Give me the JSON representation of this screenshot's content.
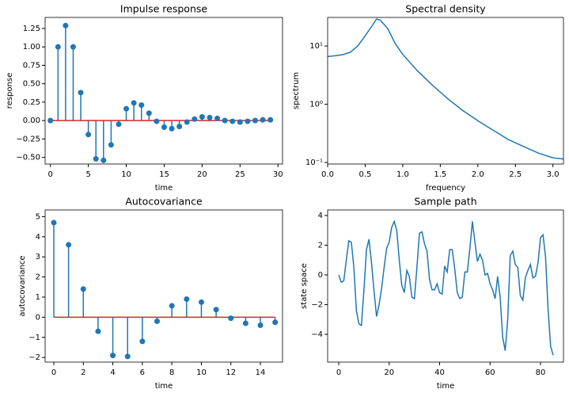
{
  "chart_data": [
    {
      "type": "stem",
      "title": "Impulse response",
      "xlabel": "time",
      "ylabel": "response",
      "x": [
        0,
        1,
        2,
        3,
        4,
        5,
        6,
        7,
        8,
        9,
        10,
        11,
        12,
        13,
        14,
        15,
        16,
        17,
        18,
        19,
        20,
        21,
        22,
        23,
        24,
        25,
        26,
        27,
        28,
        29
      ],
      "values": [
        0,
        1.0,
        1.29,
        1.0,
        0.38,
        -0.19,
        -0.52,
        -0.54,
        -0.33,
        -0.05,
        0.16,
        0.24,
        0.21,
        0.1,
        -0.01,
        -0.09,
        -0.11,
        -0.08,
        -0.02,
        0.02,
        0.05,
        0.04,
        0.03,
        0.0,
        -0.01,
        -0.02,
        -0.01,
        0.0,
        0.01,
        0.01
      ],
      "color": "#1f77b4",
      "baseline_color": "#d62728",
      "xlim": [
        -0.7,
        30.6
      ],
      "xticks": [
        0,
        5,
        10,
        15,
        20,
        25,
        30
      ],
      "ylim": [
        -0.59,
        1.4
      ],
      "yticks": [
        {
          "value": -0.5,
          "label": "−0.50"
        },
        {
          "value": -0.25,
          "label": "−0.25"
        },
        {
          "value": 0,
          "label": "0.00"
        },
        {
          "value": 0.25,
          "label": "0.25"
        },
        {
          "value": 0.5,
          "label": "0.50"
        },
        {
          "value": 0.75,
          "label": "0.75"
        },
        {
          "value": 1,
          "label": "1.00"
        },
        {
          "value": 1.25,
          "label": "1.25"
        }
      ]
    },
    {
      "type": "line",
      "title": "Spectral density",
      "xlabel": "frequency",
      "ylabel": "spectrum",
      "x": [
        0,
        0.1,
        0.2,
        0.3,
        0.4,
        0.5,
        0.6,
        0.65,
        0.7,
        0.8,
        0.9,
        1.0,
        1.2,
        1.4,
        1.6,
        1.8,
        2.0,
        2.2,
        2.4,
        2.6,
        2.8,
        3.0,
        3.14
      ],
      "values": [
        6.6,
        6.8,
        7.1,
        7.8,
        10,
        15,
        23,
        29,
        28,
        20,
        11,
        7.2,
        3.7,
        2.1,
        1.24,
        0.78,
        0.52,
        0.36,
        0.25,
        0.19,
        0.146,
        0.12,
        0.115
      ],
      "color": "#1f77b4",
      "log_y": true,
      "xlim": [
        0,
        3.14
      ],
      "xticks": [
        {
          "value": 0,
          "label": "0.0"
        },
        0.5,
        {
          "value": 1,
          "label": "1.0"
        },
        1.5,
        {
          "value": 2,
          "label": "2.0"
        },
        2.5,
        {
          "value": 3,
          "label": "3.0"
        }
      ],
      "ylim": [
        0.094,
        31
      ],
      "yticks": [
        {
          "value": 0.1,
          "label": "10⁻¹"
        },
        {
          "value": 1,
          "label": "10⁰"
        },
        {
          "value": 10,
          "label": "10¹"
        }
      ]
    },
    {
      "type": "stem",
      "title": "Autocovariance",
      "xlabel": "time",
      "ylabel": "autocovariance",
      "x": [
        0,
        1,
        2,
        3,
        4,
        5,
        6,
        7,
        8,
        9,
        10,
        11,
        12,
        13,
        14,
        15
      ],
      "values": [
        4.7,
        3.6,
        1.4,
        -0.7,
        -1.9,
        -1.95,
        -1.2,
        -0.2,
        0.57,
        0.9,
        0.75,
        0.38,
        -0.05,
        -0.3,
        -0.4,
        -0.25
      ],
      "color": "#1f77b4",
      "baseline_color": "#d62728",
      "xlim": [
        -0.59,
        15.5
      ],
      "xticks": [
        0,
        2,
        4,
        6,
        8,
        10,
        12,
        14
      ],
      "ylim": [
        -2.23,
        5.33
      ],
      "yticks": [
        {
          "value": -2,
          "label": "−2"
        },
        {
          "value": -1,
          "label": "−1"
        },
        0,
        1,
        2,
        3,
        4,
        5
      ]
    },
    {
      "type": "line",
      "title": "Sample path",
      "xlabel": "time",
      "ylabel": "state space",
      "x": [
        0,
        1,
        2,
        3,
        4,
        5,
        6,
        7,
        8,
        9,
        10,
        11,
        12,
        13,
        14,
        15,
        16,
        17,
        18,
        19,
        20,
        21,
        22,
        23,
        24,
        25,
        26,
        27,
        28,
        29,
        30,
        31,
        32,
        33,
        34,
        35,
        36,
        37,
        38,
        39,
        40,
        41,
        42,
        43,
        44,
        45,
        46,
        47,
        48,
        49,
        50,
        51,
        52,
        53,
        54,
        55,
        56,
        57,
        58,
        59,
        60,
        61,
        62,
        63,
        64,
        65,
        66,
        67,
        68,
        69,
        70,
        71,
        72,
        73,
        74,
        75,
        76,
        77,
        78,
        79,
        80,
        81,
        82,
        83,
        84,
        85
      ],
      "values": [
        0,
        -0.5,
        -0.4,
        1.0,
        2.3,
        2.2,
        0.5,
        -2.4,
        -3.3,
        -3.4,
        -1.0,
        1.7,
        2.4,
        0.8,
        -1.1,
        -2.8,
        -2.0,
        -0.9,
        0.5,
        1.8,
        2.2,
        3.2,
        3.6,
        3.0,
        1.0,
        -0.7,
        -1.2,
        0.3,
        -0.1,
        -1.5,
        -1.6,
        0.5,
        2.8,
        2.9,
        2.1,
        1.6,
        -0.3,
        -1.0,
        -1.0,
        -0.6,
        -1.2,
        -1.3,
        0.6,
        0.2,
        1.7,
        1.7,
        0.4,
        -1.2,
        -1.6,
        -1.5,
        0.2,
        0.2,
        1.8,
        3.6,
        2.2,
        0.9,
        1.4,
        1.0,
        0.0,
        0.1,
        -0.6,
        -1.0,
        -1.6,
        -0.1,
        -1.5,
        -4.2,
        -5.1,
        -3.0,
        1.3,
        1.6,
        0.7,
        0.5,
        -1.4,
        -1.7,
        -0.2,
        0.3,
        0.7,
        -0.2,
        -0.1,
        0.8,
        2.5,
        2.7,
        1.2,
        -2.3,
        -4.8,
        -5.4
      ],
      "color": "#1f77b4",
      "xlim": [
        -4.4,
        89.1
      ],
      "xticks": [
        0,
        20,
        40,
        60,
        80
      ],
      "ylim": [
        -5.87,
        4.37
      ],
      "yticks": [
        {
          "value": -4,
          "label": "−4"
        },
        {
          "value": -2,
          "label": "−2"
        },
        0,
        2,
        4
      ]
    }
  ]
}
